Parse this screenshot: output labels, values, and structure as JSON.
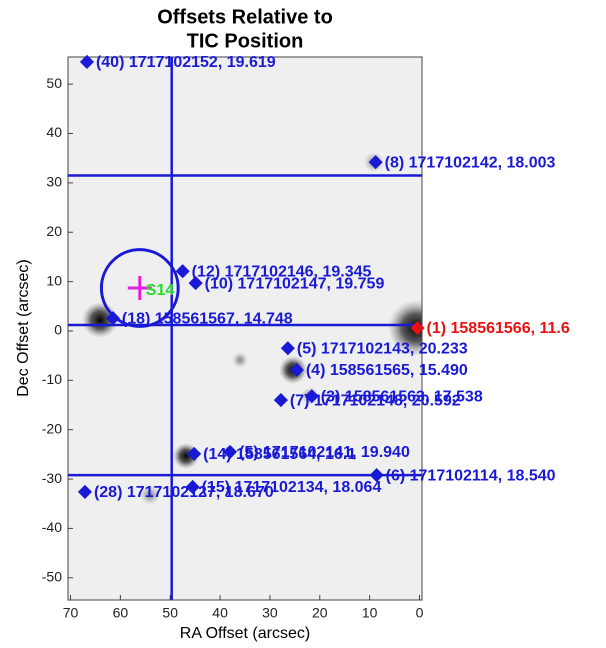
{
  "chart_data": {
    "type": "scatter",
    "title": [
      "Offsets Relative to",
      "TIC Position"
    ],
    "x_label": "RA Offset (arcsec)",
    "y_label": "Dec Offset (arcsec)",
    "xlim": [
      70.5,
      -0.5
    ],
    "ylim": [
      -54.5,
      55.5
    ],
    "xticks": [
      70,
      60,
      50,
      40,
      30,
      20,
      10,
      0
    ],
    "yticks": [
      50,
      40,
      30,
      20,
      10,
      0,
      -10,
      -20,
      -30,
      -40,
      -50
    ],
    "line_color": "#1a1ad6",
    "vlines": [
      49.7
    ],
    "hlines": [
      31.5,
      1.2,
      -29.2
    ],
    "circle": {
      "x": 56.1,
      "y": 8.7,
      "r": 7.7
    },
    "marker": {
      "x": 56.1,
      "y": 8.7,
      "label": "S14",
      "color": "#e020e0",
      "label_color": "#22dd22"
    },
    "points": {
      "x": [
        66.7,
        8.8,
        47.5,
        44.9,
        61.5,
        0.4,
        26.4,
        24.6,
        21.6,
        27.8,
        45.2,
        38.0,
        8.6,
        67.1,
        45.5
      ],
      "y": [
        54.5,
        34.2,
        12.1,
        9.7,
        2.6,
        0.6,
        -3.5,
        -7.9,
        -13.2,
        -14.0,
        -24.9,
        -24.5,
        -29.2,
        -32.6,
        -31.6
      ],
      "labels": [
        "(40) 1717102152, 19.619",
        "(8) 1717102142, 18.003",
        "(12) 1717102146, 19.345",
        "(10) 1717102147, 19.759",
        "(18) 158561567, 14.748",
        "(1) 158561566, 11.6",
        "(5) 1717102143, 20.233",
        "(4) 158561565, 15.490",
        "(3) 158561563, 17.538",
        "(7) 1717102148, 20.592",
        "(14) 158561564, 16.1",
        "(5) 1717102141, 19.940",
        "(6) 1717102114, 18.540",
        "(28) 1717102127, 18.670",
        "(15) 1717102134, 18.064"
      ],
      "colors": [
        "#1a1ad6",
        "#1a1ad6",
        "#1a1ad6",
        "#1a1ad6",
        "#1a1ad6",
        "#e81010",
        "#1a1ad6",
        "#1a1ad6",
        "#1a1ad6",
        "#1a1ad6",
        "#1a1ad6",
        "#1a1ad6",
        "#1a1ad6",
        "#1a1ad6",
        "#1a1ad6"
      ]
    }
  }
}
